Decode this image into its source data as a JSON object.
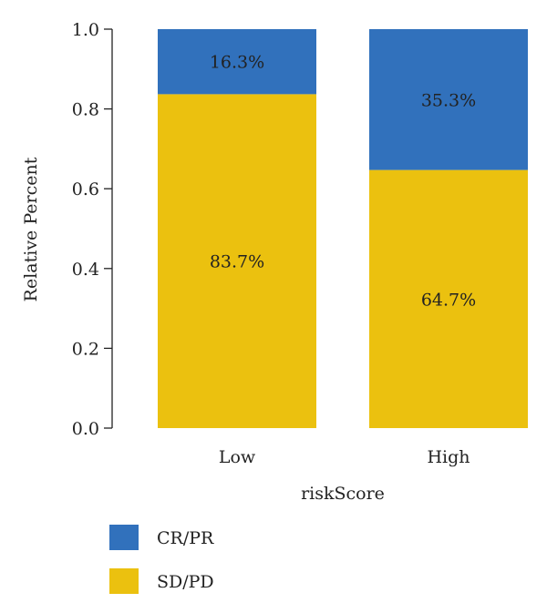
{
  "chart_data": {
    "type": "bar",
    "stacked": true,
    "categories": [
      "Low",
      "High"
    ],
    "series": [
      {
        "name": "SD/PD",
        "values": [
          0.837,
          0.647
        ],
        "labels": [
          "83.7%",
          "64.7%"
        ],
        "color": "#EBC10F"
      },
      {
        "name": "CR/PR",
        "values": [
          0.163,
          0.353
        ],
        "labels": [
          "16.3%",
          "35.3%"
        ],
        "color": "#3171BC"
      }
    ],
    "xlabel": "riskScore",
    "ylabel": "Relative Percent",
    "ylim": [
      0,
      1.0
    ],
    "yticks": [
      "0.0",
      "0.2",
      "0.4",
      "0.6",
      "0.8",
      "1.0"
    ],
    "grid": false,
    "legend": {
      "placement": "bottom-left",
      "order": [
        "CR/PR",
        "SD/PD"
      ]
    }
  }
}
